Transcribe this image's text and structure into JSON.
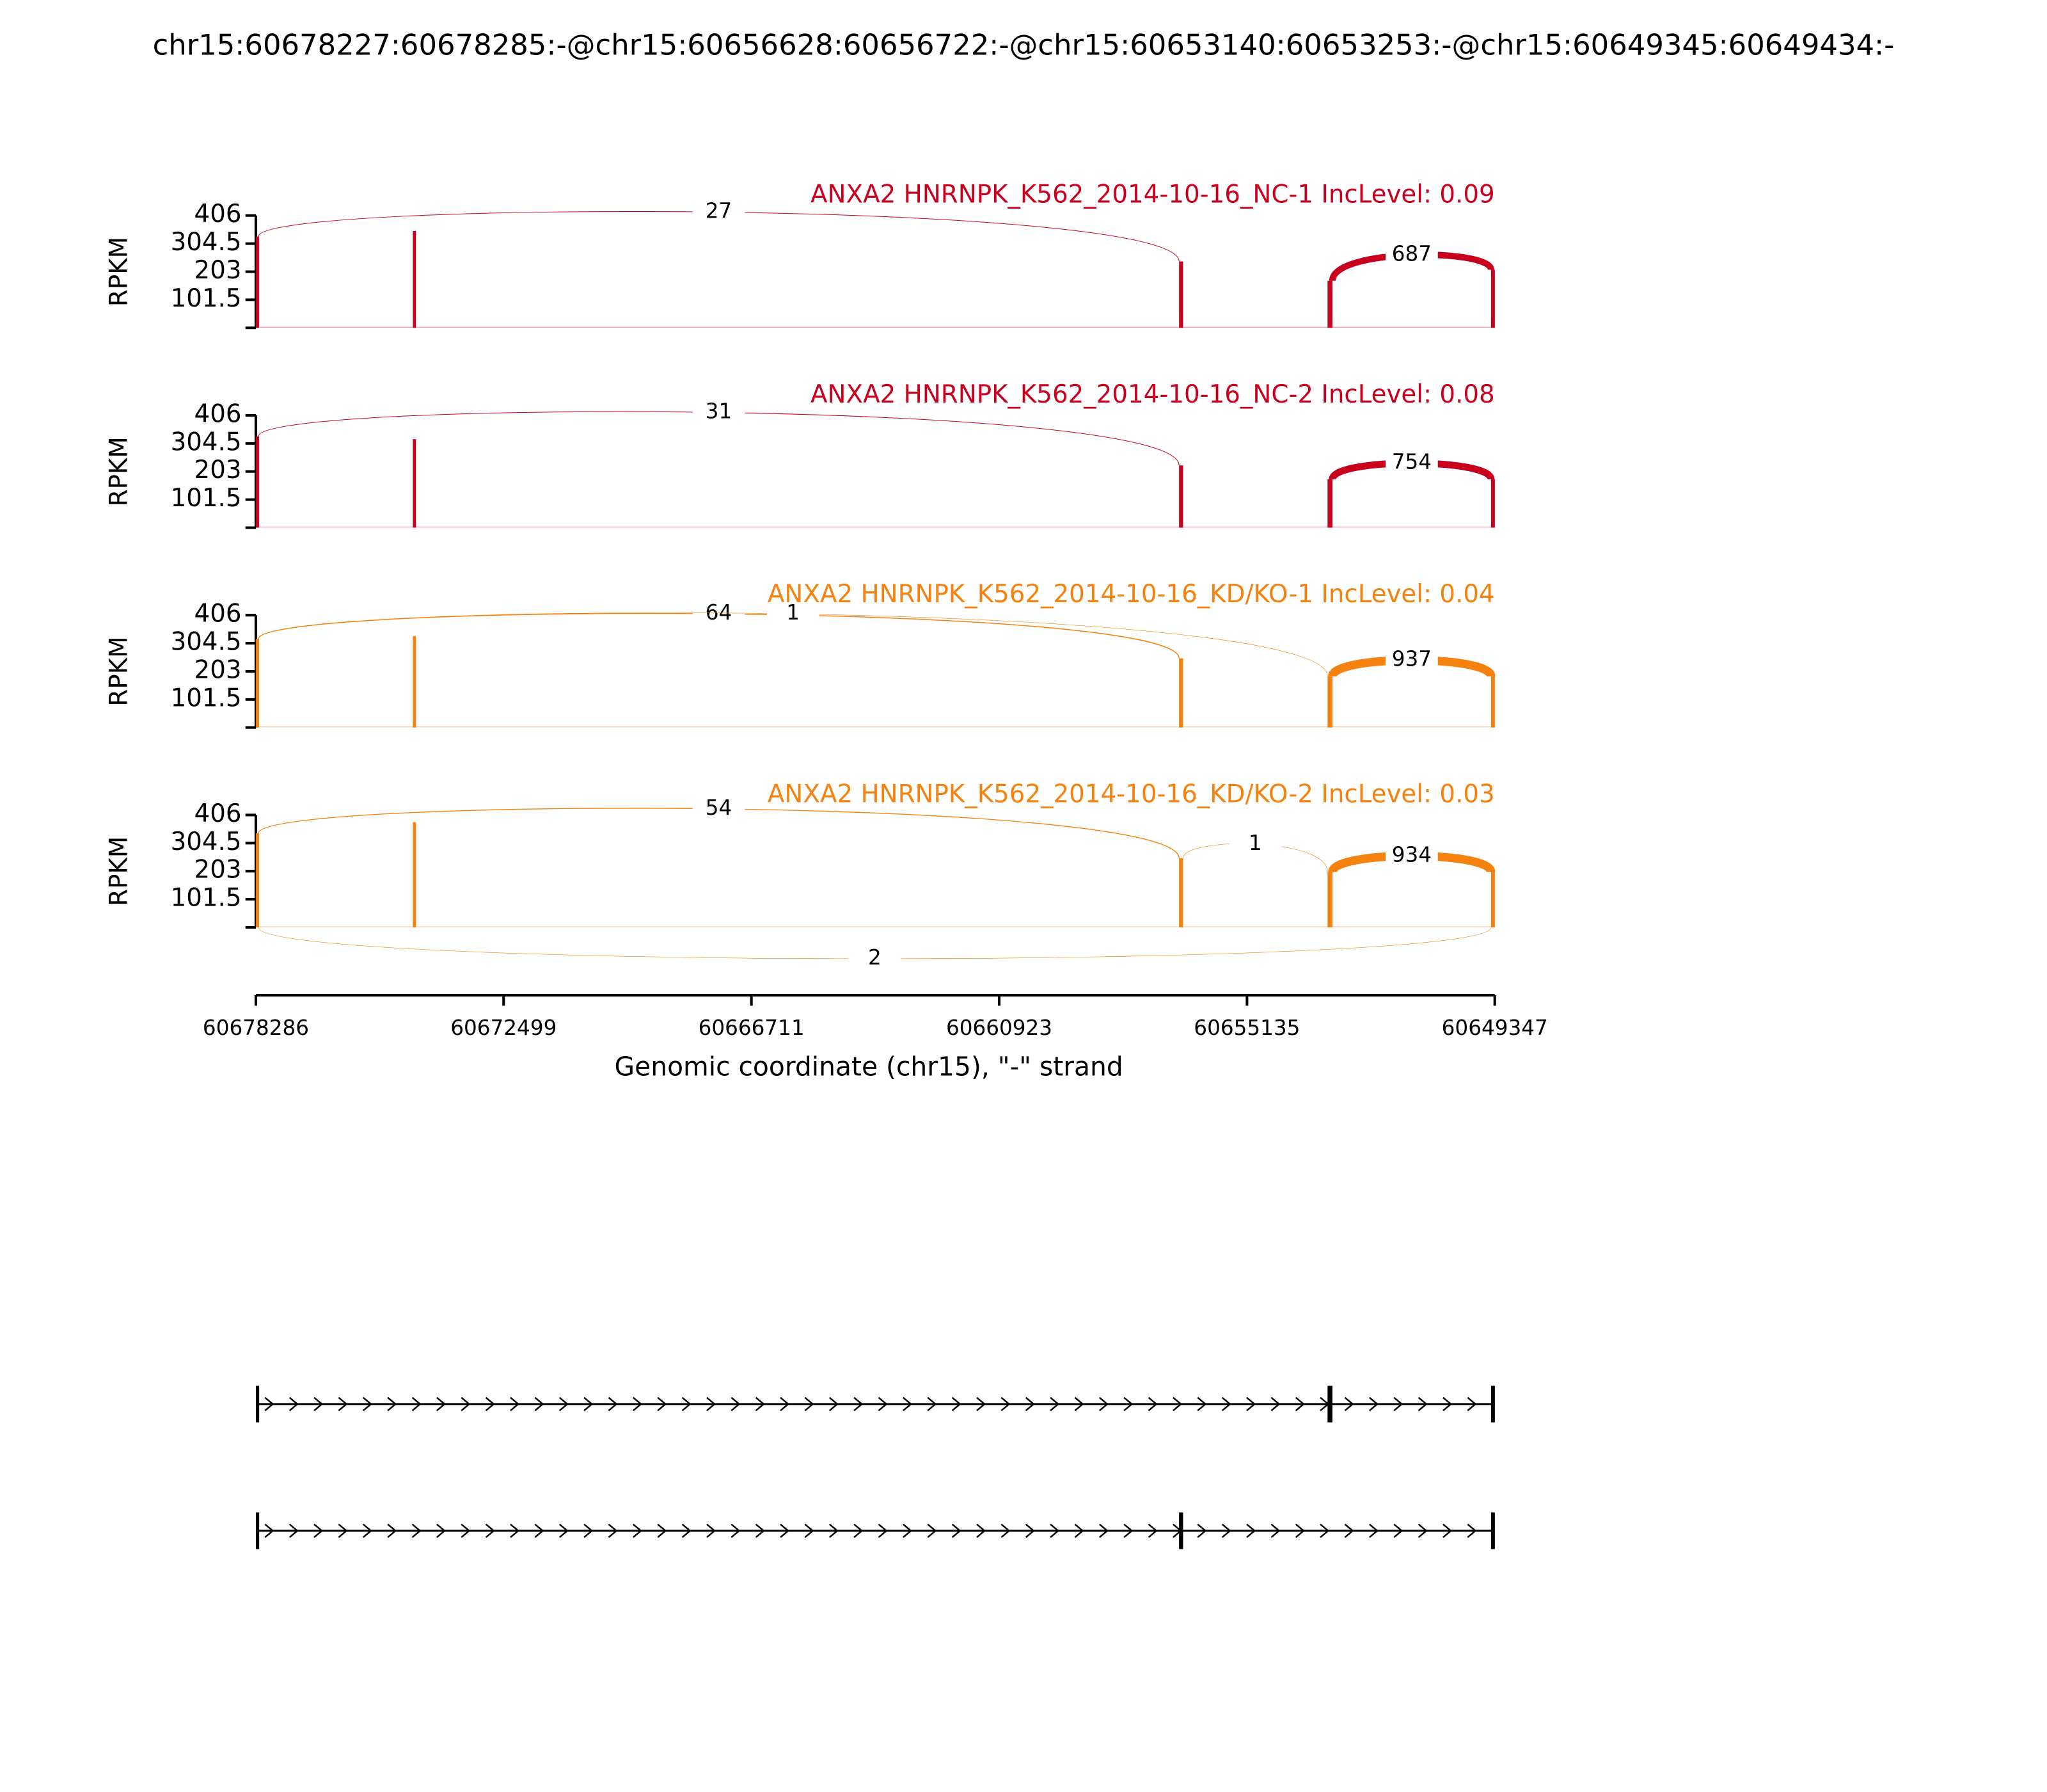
{
  "chart_data": [
    {
      "type": "sashimi",
      "title": "ANXA2 HNRNPK_K562_2014-10-16_NC-1 IncLevel: 0.09",
      "color": "#c8001e",
      "ylabel": "RPKM",
      "ylim": [
        0,
        406
      ],
      "yticks": [
        101.5,
        203,
        304.5,
        406
      ],
      "coverage": [
        {
          "start": 60678227,
          "end": 60678285,
          "value": 330
        },
        {
          "start": 60674560,
          "end": 60674620,
          "value": 350
        },
        {
          "start": 60656628,
          "end": 60656722,
          "value": 240
        },
        {
          "start": 60653140,
          "end": 60653253,
          "value": 170
        },
        {
          "start": 60649345,
          "end": 60649434,
          "value": 210
        }
      ],
      "junctions": [
        {
          "from": 60678227,
          "to": 60656722,
          "count": 27
        },
        {
          "from": 60653140,
          "to": 60649434,
          "count": 687
        }
      ]
    },
    {
      "type": "sashimi",
      "title": "ANXA2 HNRNPK_K562_2014-10-16_NC-2 IncLevel: 0.08",
      "color": "#c8001e",
      "ylabel": "RPKM",
      "ylim": [
        0,
        406
      ],
      "yticks": [
        101.5,
        203,
        304.5,
        406
      ],
      "coverage": [
        {
          "start": 60678227,
          "end": 60678285,
          "value": 330
        },
        {
          "start": 60674560,
          "end": 60674620,
          "value": 320
        },
        {
          "start": 60656628,
          "end": 60656722,
          "value": 225
        },
        {
          "start": 60653140,
          "end": 60653253,
          "value": 175
        },
        {
          "start": 60649345,
          "end": 60649434,
          "value": 175
        }
      ],
      "junctions": [
        {
          "from": 60678227,
          "to": 60656722,
          "count": 31
        },
        {
          "from": 60653140,
          "to": 60649434,
          "count": 754
        }
      ]
    },
    {
      "type": "sashimi",
      "title": "ANXA2 HNRNPK_K562_2014-10-16_KD/KO-1 IncLevel: 0.04",
      "color": "#f5820f",
      "ylabel": "RPKM",
      "ylim": [
        0,
        406
      ],
      "yticks": [
        101.5,
        203,
        304.5,
        406
      ],
      "coverage": [
        {
          "start": 60678227,
          "end": 60678285,
          "value": 320
        },
        {
          "start": 60674560,
          "end": 60674620,
          "value": 330
        },
        {
          "start": 60656628,
          "end": 60656722,
          "value": 250
        },
        {
          "start": 60653140,
          "end": 60653253,
          "value": 185
        },
        {
          "start": 60649345,
          "end": 60649434,
          "value": 185
        }
      ],
      "junctions": [
        {
          "from": 60678227,
          "to": 60656722,
          "count": 64
        },
        {
          "from": 60678227,
          "to": 60653253,
          "count": 1
        },
        {
          "from": 60653140,
          "to": 60649434,
          "count": 937
        }
      ]
    },
    {
      "type": "sashimi",
      "title": "ANXA2 HNRNPK_K562_2014-10-16_KD/KO-2 IncLevel: 0.03",
      "color": "#f5820f",
      "ylabel": "RPKM",
      "ylim": [
        0,
        406
      ],
      "yticks": [
        101.5,
        203,
        304.5,
        406
      ],
      "coverage": [
        {
          "start": 60678227,
          "end": 60678285,
          "value": 340
        },
        {
          "start": 60674560,
          "end": 60674620,
          "value": 380
        },
        {
          "start": 60656628,
          "end": 60656722,
          "value": 250
        },
        {
          "start": 60653140,
          "end": 60653253,
          "value": 200
        },
        {
          "start": 60649345,
          "end": 60649434,
          "value": 200
        }
      ],
      "junctions": [
        {
          "from": 60678227,
          "to": 60656722,
          "count": 54
        },
        {
          "from": 60656628,
          "to": 60653253,
          "count": 1
        },
        {
          "from": 60653140,
          "to": 60649434,
          "count": 934
        },
        {
          "from": 60678227,
          "to": 60649434,
          "count": 2,
          "position": "below"
        }
      ],
      "xlim": [
        60678286,
        60649347
      ],
      "xticks": [
        60678286,
        60672499,
        60666711,
        60660923,
        60655135,
        60649347
      ],
      "xlabel": "Genomic coordinate (chr15), \"-\" strand"
    }
  ],
  "title": "chr15:60678227:60678285:-@chr15:60656628:60656722:-@chr15:60653140:60653253:-@chr15:60649345:60649434:-",
  "transcripts": [
    {
      "exons": [
        [
          60678227,
          60678285
        ],
        [
          60653140,
          60653253
        ],
        [
          60649345,
          60649434
        ]
      ]
    },
    {
      "exons": [
        [
          60678227,
          60678285
        ],
        [
          60656628,
          60656722
        ],
        [
          60649345,
          60649434
        ]
      ]
    }
  ]
}
